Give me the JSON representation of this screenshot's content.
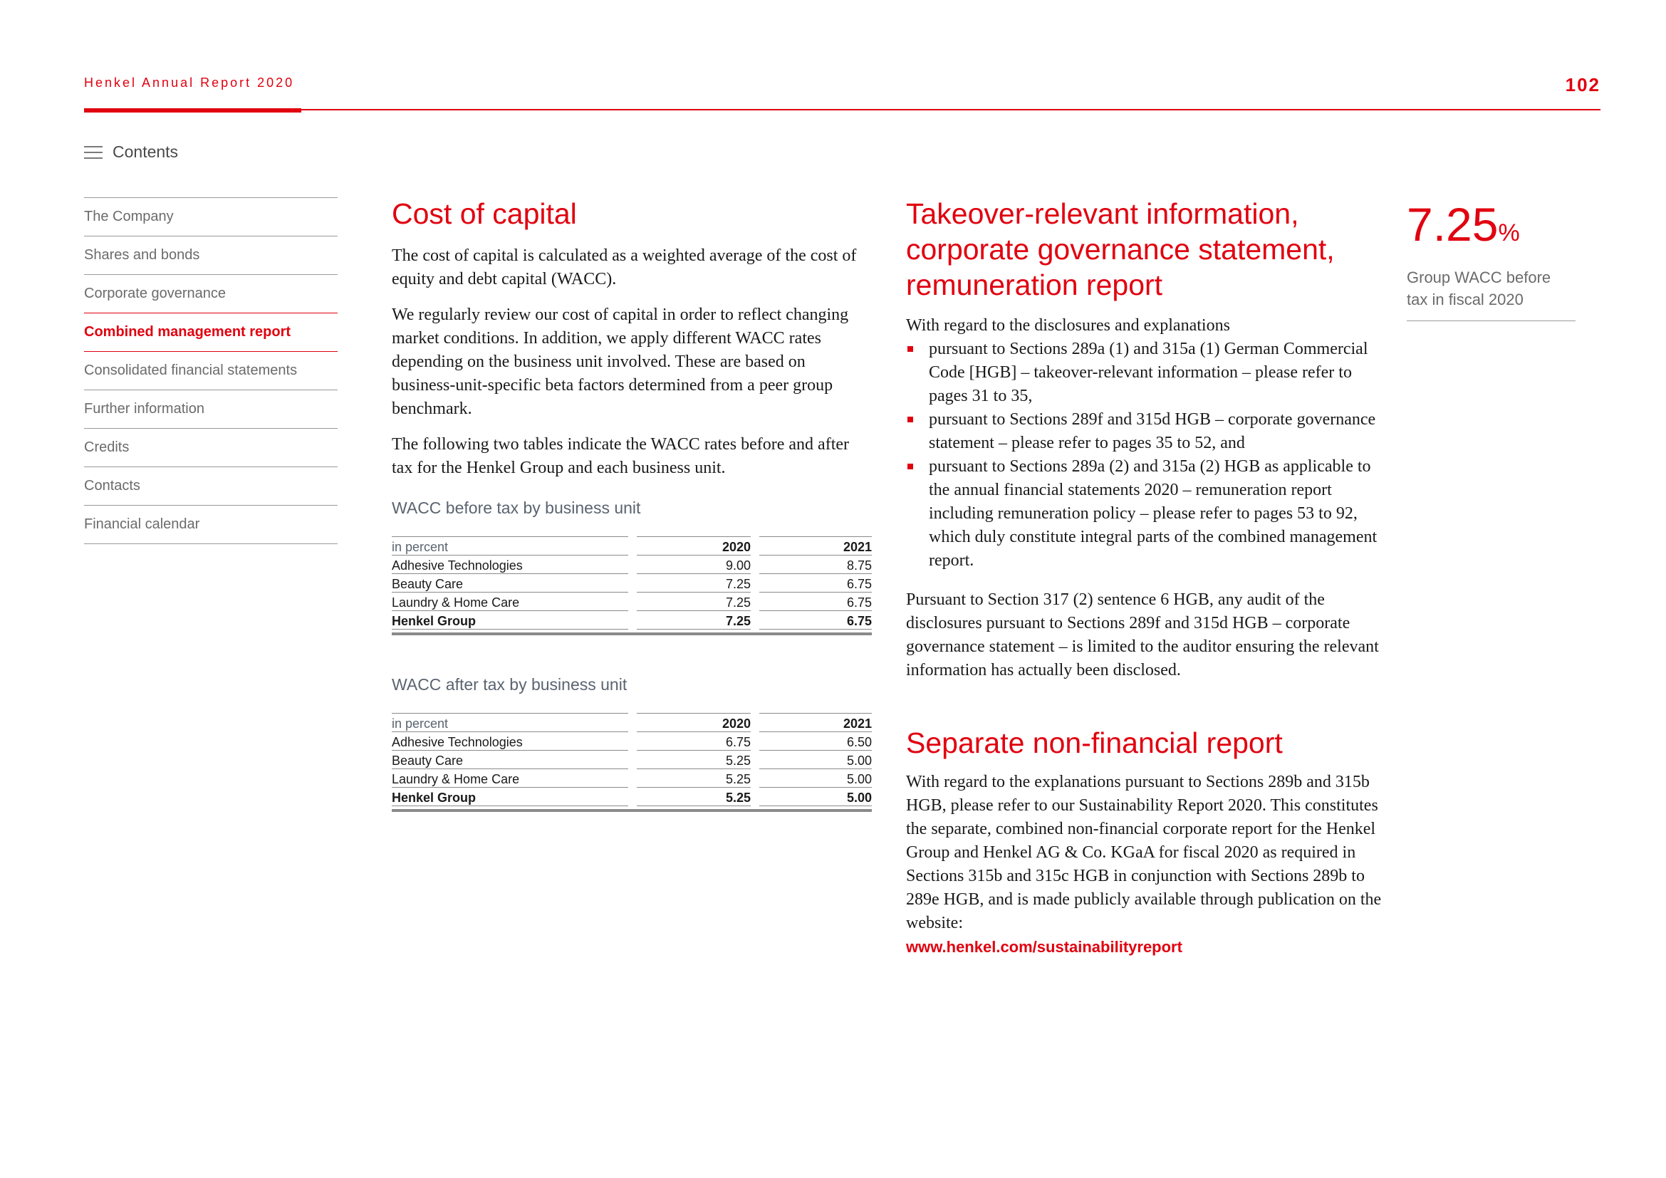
{
  "header": {
    "title": "Henkel Annual Report 2020",
    "page_number": "102"
  },
  "contents_label": "Contents",
  "nav": {
    "items": [
      {
        "label": "The Company"
      },
      {
        "label": "Shares and bonds"
      },
      {
        "label": "Corporate governance"
      },
      {
        "label": "Combined management report",
        "active": true
      },
      {
        "label": "Consolidated financial statements"
      },
      {
        "label": "Further information"
      },
      {
        "label": "Credits"
      },
      {
        "label": "Contacts"
      },
      {
        "label": "Financial calendar"
      }
    ]
  },
  "cost_of_capital": {
    "heading": "Cost of capital",
    "paragraphs": [
      "The cost of capital is calculated as a weighted average of the cost of equity and debt capital (WACC).",
      "We regularly review our cost of capital in order to reflect changing market conditions. In addition, we apply different WACC rates depending on the business unit involved. These are based on business-unit-specific beta factors determined from a peer group benchmark.",
      "The following two tables indicate the WACC rates before and after tax for the Henkel Group and each business unit."
    ],
    "table_before": {
      "title": "WACC before tax by business unit",
      "header": [
        "in percent",
        "2020",
        "2021"
      ],
      "rows": [
        [
          "Adhesive Technologies",
          "9.00",
          "8.75"
        ],
        [
          "Beauty Care",
          "7.25",
          "6.75"
        ],
        [
          "Laundry & Home Care",
          "7.25",
          "6.75"
        ]
      ],
      "total": [
        "Henkel Group",
        "7.25",
        "6.75"
      ]
    },
    "table_after": {
      "title": "WACC after tax by business unit",
      "header": [
        "in percent",
        "2020",
        "2021"
      ],
      "rows": [
        [
          "Adhesive Technologies",
          "6.75",
          "6.50"
        ],
        [
          "Beauty Care",
          "5.25",
          "5.00"
        ],
        [
          "Laundry & Home Care",
          "5.25",
          "5.00"
        ]
      ],
      "total": [
        "Henkel Group",
        "5.25",
        "5.00"
      ]
    }
  },
  "takeover": {
    "heading_lines": [
      "Takeover-relevant information,",
      "corporate governance statement,",
      "remuneration report"
    ],
    "intro": "With regard to the disclosures and explanations",
    "bullets": [
      "pursuant to Sections 289a (1) and 315a (1) German Commercial Code [HGB] – takeover-relevant information – please refer to pages 31 to 35,",
      "pursuant to Sections 289f and 315d HGB – corporate gov­ernance statement – please refer to pages 35 to 52, and",
      "pursuant to Sections 289a (2) and 315a (2) HGB as applicable to the annual financial statements 2020 – remuneration report including remuneration policy – please refer to pages 53 to 92, which duly constitute integral parts of the combined management report."
    ],
    "closing": "Pursuant to Section 317 (2) sentence 6 HGB, any audit of the disclosures pursuant to Sections 289f and 315d HGB – corporate governance statement – is limited to the auditor ensuring the relevant information has actually been disclosed."
  },
  "non_financial": {
    "heading": "Separate non-financial report",
    "text": "With regard to the explanations pursuant to Sections 289b and 315b HGB, please refer to our Sustainability Report 2020. This constitutes the separate, combined non-financial corporate report for the Henkel Group and Henkel AG & Co. KGaA for fiscal 2020 as required in Sections 315b and 315c HGB in conjunction with Sections 289b to 289e HGB, and is made publicly available through publication on the website:",
    "link": "www.henkel.com/sustainabilityreport"
  },
  "kpi": {
    "value": "7.25",
    "unit": "%",
    "label": "Group WACC before tax in fiscal 2020"
  }
}
